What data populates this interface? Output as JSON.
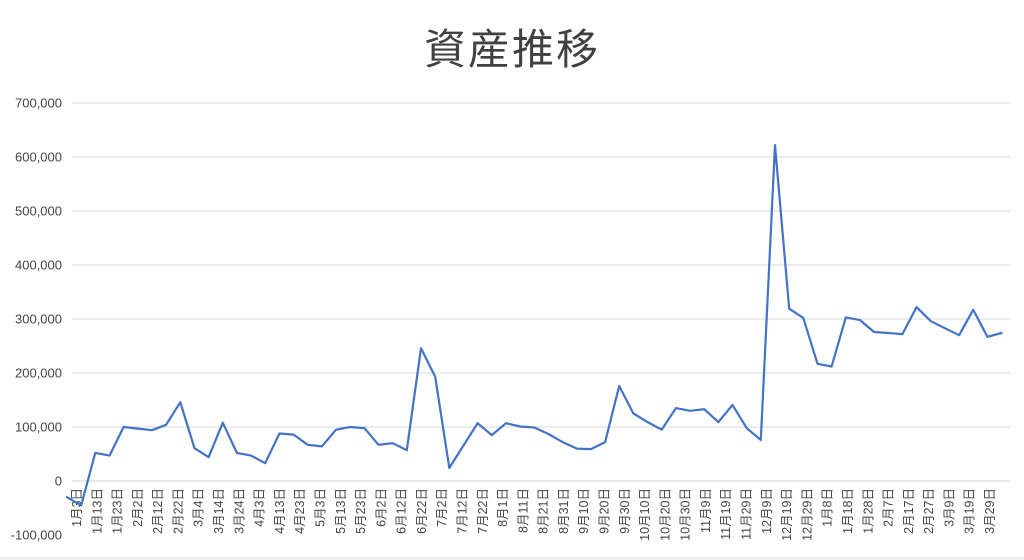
{
  "chart_data": {
    "type": "line",
    "title": "資産推移",
    "legend": "none",
    "grid": "horizontal",
    "line_color": "#4472C4",
    "grid_color": "#D9D9D9",
    "label_color": "#444444",
    "title_color": "#404040",
    "ylim": [
      -100000,
      700000
    ],
    "y_tick_interval": 100000,
    "y_tick_labels": [
      "700,000",
      "600,000",
      "500,000",
      "400,000",
      "300,000",
      "200,000",
      "100,000",
      "0",
      "-100,000"
    ],
    "x_tick_labels": [
      "1月3日",
      "1月13日",
      "1月23日",
      "2月2日",
      "2月12日",
      "2月22日",
      "3月4日",
      "3月14日",
      "3月24日",
      "4月3日",
      "4月13日",
      "4月23日",
      "5月3日",
      "5月13日",
      "5月23日",
      "6月2日",
      "6月12日",
      "6月22日",
      "7月2日",
      "7月12日",
      "7月22日",
      "8月1日",
      "8月11日",
      "8月21日",
      "8月31日",
      "9月10日",
      "9月20日",
      "9月30日",
      "10月10日",
      "10月20日",
      "10月30日",
      "11月9日",
      "11月19日",
      "11月29日",
      "12月9日",
      "12月19日",
      "12月29日",
      "1月8日",
      "1月18日",
      "1月28日",
      "2月7日",
      "2月17日",
      "2月27日",
      "3月9日",
      "3月19日",
      "3月29日"
    ],
    "series": [
      {
        "name": "資産",
        "x_interval": "weekly (estimated)",
        "x_dates": [
          "1月2日",
          "1月9日",
          "1月16日",
          "1月23日",
          "1月30日",
          "2月6日",
          "2月13日",
          "2月20日",
          "2月27日",
          "3月6日",
          "3月13日",
          "3月20日",
          "3月27日",
          "4月3日",
          "4月10日",
          "4月17日",
          "4月24日",
          "5月1日",
          "5月8日",
          "5月15日",
          "5月22日",
          "5月29日",
          "6月5日",
          "6月12日",
          "6月19日",
          "6月26日",
          "7月3日",
          "7月10日",
          "7月17日",
          "7月24日",
          "7月31日",
          "8月7日",
          "8月14日",
          "8月21日",
          "8月28日",
          "9月4日",
          "9月11日",
          "9月18日",
          "9月25日",
          "10月2日",
          "10月9日",
          "10月16日",
          "10月23日",
          "10月30日",
          "11月6日",
          "11月13日",
          "11月20日",
          "11月27日",
          "12月4日",
          "12月11日",
          "12月18日",
          "12月25日",
          "1月1日",
          "1月8日",
          "1月15日",
          "1月22日",
          "1月29日",
          "2月5日",
          "2月12日",
          "2月19日",
          "2月26日",
          "3月5日",
          "3月12日",
          "3月19日",
          "3月26日",
          "4月2日",
          "4月9日"
        ],
        "values": [
          -30000,
          -45000,
          52000,
          47000,
          100000,
          97000,
          94000,
          104000,
          146000,
          61000,
          44000,
          108000,
          52000,
          47000,
          33000,
          88000,
          86000,
          67000,
          64000,
          95000,
          100000,
          98000,
          67000,
          70000,
          57000,
          246000,
          193000,
          24000,
          66000,
          107000,
          85000,
          107000,
          101000,
          99000,
          87000,
          72000,
          60000,
          59000,
          72000,
          176000,
          125000,
          109000,
          95000,
          135000,
          130000,
          133000,
          109000,
          141000,
          98000,
          76000,
          622000,
          319000,
          302000,
          217000,
          212000,
          303000,
          298000,
          276000,
          274000,
          272000,
          322000,
          296000,
          283000,
          270000,
          317000,
          267000,
          274000
        ]
      }
    ]
  }
}
